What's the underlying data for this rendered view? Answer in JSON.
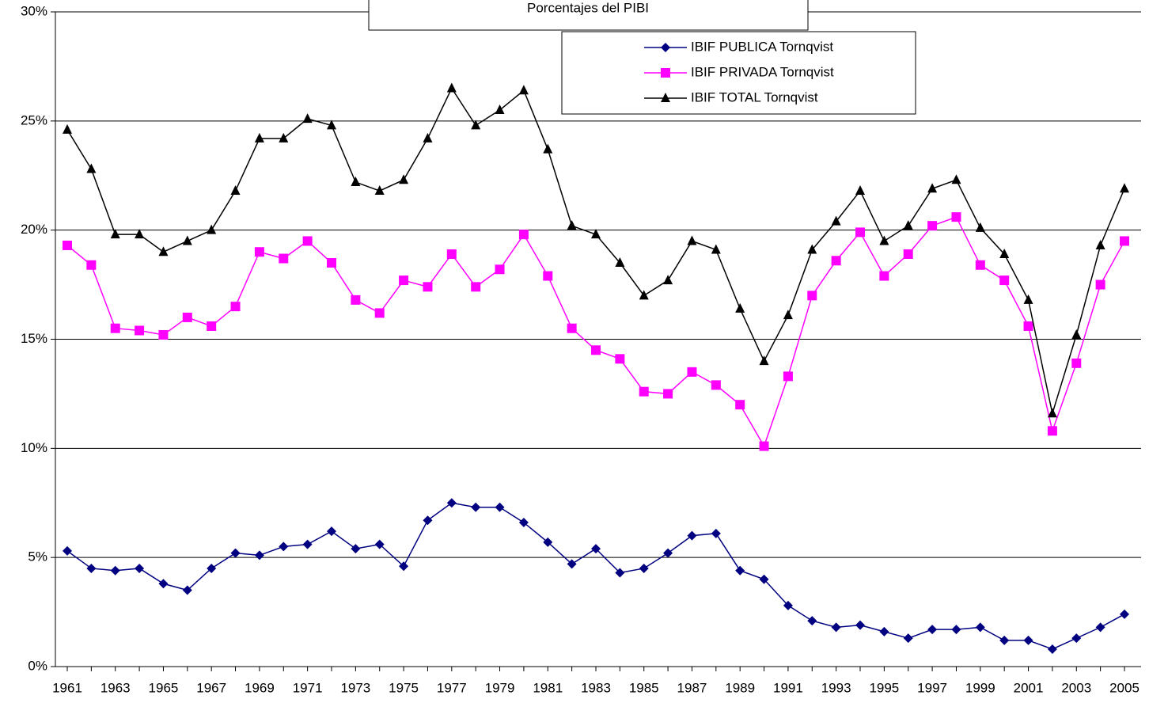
{
  "chart_data": {
    "type": "line",
    "title": "Porcentajes del PIBI",
    "categories": [
      "1961",
      null,
      "1963",
      null,
      "1965",
      null,
      "1967",
      null,
      "1969",
      null,
      "1971",
      null,
      "1973",
      null,
      "1975",
      null,
      "1977",
      null,
      "1979",
      null,
      "1981",
      null,
      "1983",
      null,
      "1985",
      null,
      "1987",
      null,
      "1989",
      null,
      "1991",
      null,
      "1993",
      null,
      "1995",
      null,
      "1997",
      null,
      "1999",
      null,
      "2001",
      null,
      "2003",
      null,
      "2005"
    ],
    "series": [
      {
        "name": "IBIF PUBLICA Tornqvist",
        "color": "#000080",
        "marker": "diamond",
        "values": [
          5.3,
          4.5,
          4.4,
          4.5,
          3.8,
          3.5,
          4.5,
          5.2,
          5.1,
          5.5,
          5.6,
          6.2,
          5.4,
          5.6,
          4.6,
          6.7,
          7.5,
          7.3,
          7.3,
          6.6,
          5.7,
          4.7,
          5.4,
          4.3,
          4.5,
          5.2,
          6.0,
          6.1,
          4.4,
          4.0,
          2.8,
          2.1,
          1.8,
          1.9,
          1.6,
          1.3,
          1.7,
          1.7,
          1.8,
          1.2,
          1.2,
          0.8,
          1.3,
          1.8,
          2.4
        ]
      },
      {
        "name": "IBIF PRIVADA Tornqvist",
        "color": "#ff00ff",
        "marker": "square",
        "values": [
          19.3,
          18.4,
          15.5,
          15.4,
          15.2,
          16.0,
          15.6,
          16.5,
          19.0,
          18.7,
          19.5,
          18.5,
          16.8,
          16.2,
          17.7,
          17.4,
          18.9,
          17.4,
          18.2,
          19.8,
          17.9,
          15.5,
          14.5,
          14.1,
          12.6,
          12.5,
          13.5,
          12.9,
          12.0,
          10.1,
          13.3,
          17.0,
          18.6,
          19.9,
          17.9,
          18.9,
          20.2,
          20.6,
          18.4,
          17.7,
          15.6,
          10.8,
          13.9,
          17.5,
          19.5
        ]
      },
      {
        "name": "IBIF TOTAL Tornqvist",
        "color": "#000000",
        "marker": "triangle",
        "values": [
          24.6,
          22.8,
          19.8,
          19.8,
          19.0,
          19.5,
          20.0,
          21.8,
          24.2,
          24.2,
          25.1,
          24.8,
          22.2,
          21.8,
          22.3,
          24.2,
          26.5,
          24.8,
          25.5,
          26.4,
          23.7,
          20.2,
          19.8,
          18.5,
          17.0,
          17.7,
          19.5,
          19.1,
          16.4,
          14.0,
          16.1,
          19.1,
          20.4,
          21.8,
          19.5,
          20.2,
          21.9,
          22.3,
          20.1,
          18.9,
          16.8,
          11.6,
          15.2,
          19.3,
          21.9
        ]
      }
    ],
    "ylim": [
      0,
      30
    ],
    "yticks": [
      {
        "value": 0,
        "label": "0%"
      },
      {
        "value": 5,
        "label": "5%"
      },
      {
        "value": 10,
        "label": "10%"
      },
      {
        "value": 15,
        "label": "15%"
      },
      {
        "value": 20,
        "label": "20%"
      },
      {
        "value": 25,
        "label": "25%"
      },
      {
        "value": 30,
        "label": "30%"
      }
    ],
    "grid": true,
    "legend": "upper right"
  }
}
